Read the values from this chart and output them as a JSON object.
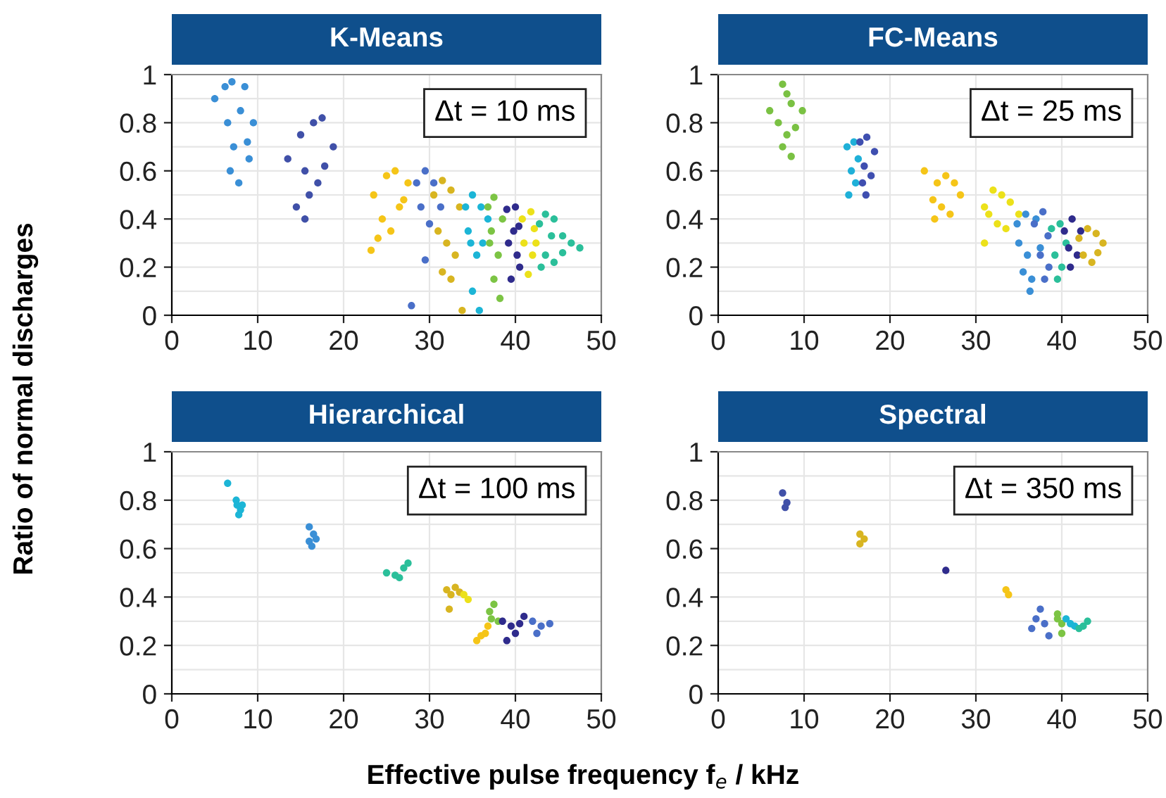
{
  "chart_data": [
    {
      "type": "scatter",
      "title": "K-Means",
      "ylabel": "Ratio of normal discharges",
      "annotations": [
        "Δt = 10 ms"
      ],
      "xlim": [
        0,
        50
      ],
      "ylim": [
        0,
        1
      ],
      "xticks": [
        0,
        10,
        20,
        30,
        40,
        50
      ],
      "yticks": [
        0,
        {
          "value": 0.1,
          "label": null
        },
        0.2,
        {
          "value": 0.3,
          "label": null
        },
        0.4,
        {
          "value": 0.5,
          "label": null
        },
        0.6,
        {
          "value": 0.7,
          "label": null
        },
        0.8,
        {
          "value": 0.9,
          "label": null
        },
        1
      ],
      "grid": true,
      "marker": "circle",
      "series": [
        {
          "color": "#3a8fd6",
          "x": [
            5,
            6.2,
            7,
            8.5,
            9.5,
            6.5,
            8,
            7.2,
            9,
            6.8,
            7.8,
            8.8
          ],
          "values": [
            0.9,
            0.95,
            0.97,
            0.95,
            0.8,
            0.8,
            0.85,
            0.7,
            0.65,
            0.6,
            0.55,
            0.72
          ]
        },
        {
          "color": "#4050a8",
          "x": [
            13.5,
            15,
            16.5,
            17.5,
            18.8,
            15.5,
            16,
            17,
            14.5,
            15.5,
            17.8
          ],
          "values": [
            0.65,
            0.75,
            0.8,
            0.82,
            0.7,
            0.6,
            0.5,
            0.55,
            0.45,
            0.4,
            0.62
          ]
        },
        {
          "color": "#f5c518",
          "x": [
            23.5,
            25,
            26,
            27.5,
            24.5,
            26.5,
            25.5,
            23.2,
            27,
            24
          ],
          "values": [
            0.5,
            0.58,
            0.6,
            0.55,
            0.4,
            0.45,
            0.35,
            0.27,
            0.48,
            0.32
          ]
        },
        {
          "color": "#4a6fc8",
          "x": [
            28.5,
            29.5,
            30.5,
            31.3,
            29,
            30,
            27.9,
            29.5
          ],
          "values": [
            0.55,
            0.6,
            0.55,
            0.45,
            0.45,
            0.38,
            0.04,
            0.23
          ]
        },
        {
          "color": "#d8b521",
          "x": [
            30.5,
            31.5,
            32.5,
            33.5,
            31,
            32,
            33,
            32.5,
            31.5,
            33.8
          ],
          "values": [
            0.5,
            0.56,
            0.52,
            0.45,
            0.35,
            0.3,
            0.25,
            0.15,
            0.18,
            0.02
          ]
        },
        {
          "color": "#1cb5d6",
          "x": [
            34.2,
            35,
            36,
            36.8,
            34.8,
            35.5,
            36.2,
            35,
            35.8,
            34.5
          ],
          "values": [
            0.45,
            0.5,
            0.45,
            0.4,
            0.3,
            0.25,
            0.3,
            0.1,
            0.02,
            0.35
          ]
        },
        {
          "color": "#7cc444",
          "x": [
            36.8,
            37.5,
            38.5,
            37,
            38,
            37.5,
            38.2,
            37.2
          ],
          "values": [
            0.45,
            0.49,
            0.4,
            0.3,
            0.25,
            0.15,
            0.07,
            0.35
          ]
        },
        {
          "color": "#2f2b8c",
          "x": [
            39,
            40,
            40.4,
            39.2,
            40.2,
            39.5,
            40.5,
            39.8
          ],
          "values": [
            0.44,
            0.45,
            0.37,
            0.3,
            0.25,
            0.15,
            0.2,
            0.35
          ]
        },
        {
          "color": "#ece11a",
          "x": [
            40.8,
            41.8,
            42.2,
            41,
            42,
            41.5,
            42.4
          ],
          "values": [
            0.4,
            0.43,
            0.36,
            0.3,
            0.25,
            0.17,
            0.3
          ]
        },
        {
          "color": "#2bbf9a",
          "x": [
            42.8,
            43.5,
            44.5,
            45.5,
            46.5,
            47.5,
            43.5,
            44.5,
            45.5,
            43,
            44.2
          ],
          "values": [
            0.38,
            0.42,
            0.4,
            0.33,
            0.3,
            0.28,
            0.25,
            0.22,
            0.26,
            0.2,
            0.33
          ]
        }
      ]
    },
    {
      "type": "scatter",
      "title": "FC-Means",
      "annotations": [
        "Δt = 25 ms"
      ],
      "xlim": [
        0,
        50
      ],
      "ylim": [
        0,
        1
      ],
      "xticks": [
        0,
        10,
        20,
        30,
        40,
        50
      ],
      "yticks": [
        0,
        {
          "value": 0.1,
          "label": null
        },
        0.2,
        {
          "value": 0.3,
          "label": null
        },
        0.4,
        {
          "value": 0.5,
          "label": null
        },
        0.6,
        {
          "value": 0.7,
          "label": null
        },
        0.8,
        {
          "value": 0.9,
          "label": null
        },
        1
      ],
      "grid": true,
      "marker": "circle",
      "series": [
        {
          "color": "#7ac143",
          "x": [
            6,
            7.5,
            8.5,
            9.8,
            7,
            8,
            9,
            7.5,
            8.5,
            8
          ],
          "values": [
            0.85,
            0.96,
            0.88,
            0.85,
            0.8,
            0.75,
            0.78,
            0.7,
            0.66,
            0.92
          ]
        },
        {
          "color": "#1fb0d8",
          "x": [
            15,
            15.8,
            16.3,
            15.5,
            16,
            15.2
          ],
          "values": [
            0.7,
            0.72,
            0.65,
            0.6,
            0.55,
            0.5
          ]
        },
        {
          "color": "#3f4fb0",
          "x": [
            16.5,
            17.3,
            18.2,
            17,
            17.8,
            16.8,
            17.2
          ],
          "values": [
            0.72,
            0.74,
            0.68,
            0.62,
            0.58,
            0.55,
            0.5
          ]
        },
        {
          "color": "#f5c518",
          "x": [
            24,
            25.5,
            26.5,
            27.5,
            28.2,
            25,
            26,
            27,
            25.2
          ],
          "values": [
            0.6,
            0.55,
            0.58,
            0.55,
            0.5,
            0.48,
            0.45,
            0.42,
            0.4
          ]
        },
        {
          "color": "#ece11a",
          "x": [
            31,
            32,
            33,
            34,
            35,
            32.5,
            33.5,
            31.5,
            31
          ],
          "values": [
            0.45,
            0.52,
            0.5,
            0.47,
            0.42,
            0.38,
            0.36,
            0.42,
            0.3
          ]
        },
        {
          "color": "#3a8fd6",
          "x": [
            34.8,
            35.8,
            37,
            35,
            36,
            37.5,
            35.5,
            36.5,
            36.3
          ],
          "values": [
            0.38,
            0.42,
            0.4,
            0.3,
            0.25,
            0.28,
            0.18,
            0.15,
            0.1
          ]
        },
        {
          "color": "#4a6fc8",
          "x": [
            36.8,
            37.8,
            38.4,
            37.5,
            38.5,
            38
          ],
          "values": [
            0.38,
            0.43,
            0.33,
            0.25,
            0.2,
            0.15
          ]
        },
        {
          "color": "#2bbf9a",
          "x": [
            38.8,
            39.8,
            40.5,
            39.2,
            40,
            39.5
          ],
          "values": [
            0.36,
            0.38,
            0.3,
            0.25,
            0.2,
            0.15
          ]
        },
        {
          "color": "#2f2b8c",
          "x": [
            40.3,
            41.2,
            42.2,
            40.8,
            41.8,
            41
          ],
          "values": [
            0.35,
            0.4,
            0.35,
            0.28,
            0.25,
            0.2
          ]
        },
        {
          "color": "#d8b521",
          "x": [
            42,
            43,
            44,
            44.8,
            42.5,
            43.5,
            44.2
          ],
          "values": [
            0.32,
            0.36,
            0.34,
            0.3,
            0.25,
            0.22,
            0.26
          ]
        }
      ]
    },
    {
      "type": "scatter",
      "title": "Hierarchical",
      "xlabel": "Effective pulse frequency f$_{e}$ / kHz",
      "annotations": [
        "Δt = 100 ms"
      ],
      "xlim": [
        0,
        50
      ],
      "ylim": [
        0,
        1
      ],
      "xticks": [
        0,
        10,
        20,
        30,
        40,
        50
      ],
      "yticks": [
        0,
        {
          "value": 0.1,
          "label": null
        },
        0.2,
        {
          "value": 0.3,
          "label": null
        },
        0.4,
        {
          "value": 0.5,
          "label": null
        },
        0.6,
        {
          "value": 0.7,
          "label": null
        },
        0.8,
        {
          "value": 0.9,
          "label": null
        },
        1
      ],
      "grid": true,
      "marker": "circle",
      "series": [
        {
          "color": "#1cb5d6",
          "x": [
            6.5,
            7.5,
            8,
            7.8,
            8.2,
            7.6
          ],
          "values": [
            0.87,
            0.8,
            0.76,
            0.74,
            0.78,
            0.78
          ]
        },
        {
          "color": "#3a8fd6",
          "x": [
            16,
            16.5,
            16,
            16.8,
            16.3
          ],
          "values": [
            0.69,
            0.66,
            0.63,
            0.64,
            0.61
          ]
        },
        {
          "color": "#2bbf9a",
          "x": [
            25,
            26.5,
            27,
            27.5,
            26
          ],
          "values": [
            0.5,
            0.48,
            0.52,
            0.54,
            0.49
          ]
        },
        {
          "color": "#d8b521",
          "x": [
            32,
            33,
            32.5,
            32.3,
            33.5
          ],
          "values": [
            0.43,
            0.44,
            0.41,
            0.35,
            0.42
          ]
        },
        {
          "color": "#ece11a",
          "x": [
            34,
            34.5
          ],
          "values": [
            0.41,
            0.39
          ]
        },
        {
          "color": "#7cc444",
          "x": [
            37,
            37.5,
            37.2,
            38
          ],
          "values": [
            0.34,
            0.37,
            0.31,
            0.3
          ]
        },
        {
          "color": "#f5c518",
          "x": [
            35.5,
            36.5,
            36.8,
            36
          ],
          "values": [
            0.22,
            0.25,
            0.28,
            0.24
          ]
        },
        {
          "color": "#2f2b8c",
          "x": [
            38.5,
            39.5,
            40,
            41,
            39,
            40.5
          ],
          "values": [
            0.3,
            0.28,
            0.25,
            0.32,
            0.22,
            0.29
          ]
        },
        {
          "color": "#4a6fc8",
          "x": [
            42,
            43,
            44,
            42.5
          ],
          "values": [
            0.3,
            0.28,
            0.29,
            0.25
          ]
        }
      ]
    },
    {
      "type": "scatter",
      "title": "Spectral",
      "annotations": [
        "Δt = 350 ms"
      ],
      "xlim": [
        0,
        50
      ],
      "ylim": [
        0,
        1
      ],
      "xticks": [
        0,
        10,
        20,
        30,
        40,
        50
      ],
      "yticks": [
        0,
        {
          "value": 0.1,
          "label": null
        },
        0.2,
        {
          "value": 0.3,
          "label": null
        },
        0.4,
        {
          "value": 0.5,
          "label": null
        },
        0.6,
        {
          "value": 0.7,
          "label": null
        },
        0.8,
        {
          "value": 0.9,
          "label": null
        },
        1
      ],
      "grid": true,
      "marker": "circle",
      "series": [
        {
          "color": "#4050a8",
          "x": [
            7.5,
            8,
            7.8
          ],
          "values": [
            0.83,
            0.79,
            0.77
          ]
        },
        {
          "color": "#d8b521",
          "x": [
            16.5,
            17,
            16.5
          ],
          "values": [
            0.66,
            0.64,
            0.62
          ]
        },
        {
          "color": "#2f2b8c",
          "x": [
            26.5
          ],
          "values": [
            0.51
          ]
        },
        {
          "color": "#f5c518",
          "x": [
            33.5,
            33.8
          ],
          "values": [
            0.43,
            0.41
          ]
        },
        {
          "color": "#4a6fc8",
          "x": [
            37.5,
            37,
            36.5,
            38.5,
            38
          ],
          "values": [
            0.35,
            0.31,
            0.27,
            0.24,
            0.29
          ]
        },
        {
          "color": "#7cc444",
          "x": [
            39.5,
            40,
            40,
            39.5
          ],
          "values": [
            0.33,
            0.29,
            0.25,
            0.31
          ]
        },
        {
          "color": "#1cb5d6",
          "x": [
            40.5,
            41,
            41.5
          ],
          "values": [
            0.31,
            0.29,
            0.28
          ]
        },
        {
          "color": "#2bbf9a",
          "x": [
            42,
            42.5,
            43
          ],
          "values": [
            0.27,
            0.28,
            0.3
          ]
        }
      ]
    }
  ]
}
